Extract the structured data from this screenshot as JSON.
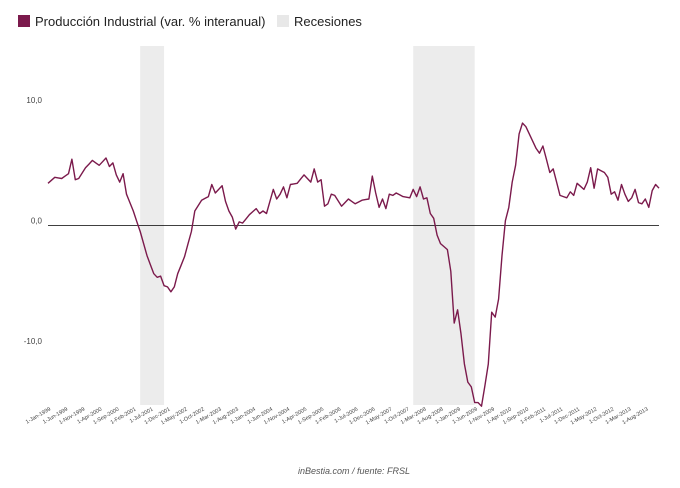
{
  "chart_data": {
    "type": "line",
    "title": "",
    "xlabel": "",
    "ylabel": "",
    "legend": {
      "placement": "top-left",
      "series_label": "Producción Industrial (var. % interanual)",
      "recession_label": "Recesiones"
    },
    "colors": {
      "series": "#7b1a4c",
      "recession": "#ececec",
      "zero_line": "#000000"
    },
    "ylim": [
      -14.9,
      14.9
    ],
    "y_ticks": [
      "10,0",
      "0,0",
      "-10,0"
    ],
    "y_tick_values": [
      10,
      0,
      -10
    ],
    "x_start": "1999-01",
    "x_end": "2013-12",
    "x_ticks": [
      "1-Jan-1999",
      "1-Jun-1999",
      "1-Nov-1999",
      "1-Apr-2000",
      "1-Sep-2000",
      "1-Feb-2001",
      "1-Jul-2001",
      "1-Dec-2001",
      "1-May-2002",
      "1-Oct-2002",
      "1-Mar-2003",
      "1-Aug-2003",
      "1-Jan-2004",
      "1-Jun-2004",
      "1-Nov-2004",
      "1-Apr-2005",
      "1-Sep-2005",
      "1-Feb-2006",
      "1-Jul-2006",
      "1-Dec-2006",
      "1-May-2007",
      "1-Oct-2007",
      "1-Mar-2008",
      "1-Aug-2008",
      "1-Jan-2009",
      "1-Jun-2009",
      "1-Nov-2009",
      "1-Apr-2010",
      "1-Sep-2010",
      "1-Feb-2011",
      "1-Jul-2011",
      "1-Dec-2011",
      "1-May-2012",
      "1-Oct-2012",
      "1-Mar-2013",
      "1-Aug-2013"
    ],
    "recessions": [
      {
        "start": "2001-04",
        "end": "2001-11"
      },
      {
        "start": "2007-12",
        "end": "2009-06"
      }
    ],
    "series": [
      {
        "name": "Producción Industrial (var. % interanual)",
        "anchors": [
          [
            "1999-01",
            3.5
          ],
          [
            "1999-03",
            4.0
          ],
          [
            "1999-05",
            3.9
          ],
          [
            "1999-07",
            4.3
          ],
          [
            "1999-08",
            5.5
          ],
          [
            "1999-09",
            3.8
          ],
          [
            "1999-10",
            3.9
          ],
          [
            "1999-12",
            4.8
          ],
          [
            "2000-02",
            5.4
          ],
          [
            "2000-04",
            5.0
          ],
          [
            "2000-06",
            5.6
          ],
          [
            "2000-07",
            4.9
          ],
          [
            "2000-08",
            5.2
          ],
          [
            "2000-09",
            4.2
          ],
          [
            "2000-10",
            3.6
          ],
          [
            "2000-11",
            4.3
          ],
          [
            "2000-12",
            2.6
          ],
          [
            "2001-02",
            1.2
          ],
          [
            "2001-04",
            -0.5
          ],
          [
            "2001-06",
            -2.5
          ],
          [
            "2001-08",
            -4.0
          ],
          [
            "2001-09",
            -4.3
          ],
          [
            "2001-10",
            -4.2
          ],
          [
            "2001-11",
            -5.0
          ],
          [
            "2001-12",
            -5.1
          ],
          [
            "2002-01",
            -5.5
          ],
          [
            "2002-02",
            -5.1
          ],
          [
            "2002-03",
            -4.0
          ],
          [
            "2002-05",
            -2.6
          ],
          [
            "2002-07",
            -0.5
          ],
          [
            "2002-08",
            1.2
          ],
          [
            "2002-10",
            2.1
          ],
          [
            "2002-12",
            2.4
          ],
          [
            "2003-01",
            3.4
          ],
          [
            "2003-02",
            2.7
          ],
          [
            "2003-04",
            3.3
          ],
          [
            "2003-05",
            2.0
          ],
          [
            "2003-06",
            1.2
          ],
          [
            "2003-07",
            0.7
          ],
          [
            "2003-08",
            -0.3
          ],
          [
            "2003-09",
            0.3
          ],
          [
            "2003-10",
            0.2
          ],
          [
            "2003-12",
            0.9
          ],
          [
            "2004-02",
            1.4
          ],
          [
            "2004-03",
            1.0
          ],
          [
            "2004-04",
            1.2
          ],
          [
            "2004-05",
            1.0
          ],
          [
            "2004-06",
            2.0
          ],
          [
            "2004-07",
            3.0
          ],
          [
            "2004-08",
            2.2
          ],
          [
            "2004-09",
            2.6
          ],
          [
            "2004-10",
            3.2
          ],
          [
            "2004-11",
            2.3
          ],
          [
            "2004-12",
            3.4
          ],
          [
            "2005-02",
            3.5
          ],
          [
            "2005-04",
            4.2
          ],
          [
            "2005-06",
            3.6
          ],
          [
            "2005-07",
            4.7
          ],
          [
            "2005-08",
            3.6
          ],
          [
            "2005-09",
            3.8
          ],
          [
            "2005-10",
            1.6
          ],
          [
            "2005-11",
            1.8
          ],
          [
            "2005-12",
            2.6
          ],
          [
            "2006-01",
            2.5
          ],
          [
            "2006-03",
            1.6
          ],
          [
            "2006-05",
            2.2
          ],
          [
            "2006-07",
            1.8
          ],
          [
            "2006-09",
            2.1
          ],
          [
            "2006-11",
            2.2
          ],
          [
            "2006-12",
            4.1
          ],
          [
            "2007-01",
            2.7
          ],
          [
            "2007-02",
            1.5
          ],
          [
            "2007-03",
            2.2
          ],
          [
            "2007-04",
            1.4
          ],
          [
            "2007-05",
            2.6
          ],
          [
            "2007-06",
            2.5
          ],
          [
            "2007-07",
            2.7
          ],
          [
            "2007-09",
            2.4
          ],
          [
            "2007-11",
            2.3
          ],
          [
            "2007-12",
            3.0
          ],
          [
            "2008-01",
            2.4
          ],
          [
            "2008-02",
            3.2
          ],
          [
            "2008-03",
            2.2
          ],
          [
            "2008-04",
            2.3
          ],
          [
            "2008-05",
            1.0
          ],
          [
            "2008-06",
            0.6
          ],
          [
            "2008-07",
            -0.8
          ],
          [
            "2008-08",
            -1.5
          ],
          [
            "2008-10",
            -2.0
          ],
          [
            "2008-11",
            -3.8
          ],
          [
            "2008-12",
            -8.1
          ],
          [
            "2009-01",
            -7.0
          ],
          [
            "2009-02",
            -9.0
          ],
          [
            "2009-03",
            -11.5
          ],
          [
            "2009-04",
            -13.0
          ],
          [
            "2009-05",
            -13.4
          ],
          [
            "2009-06",
            -14.7
          ],
          [
            "2009-07",
            -14.7
          ],
          [
            "2009-08",
            -15.0
          ],
          [
            "2009-09",
            -13.3
          ],
          [
            "2009-10",
            -11.5
          ],
          [
            "2009-11",
            -7.2
          ],
          [
            "2009-12",
            -7.6
          ],
          [
            "2010-01",
            -6.1
          ],
          [
            "2010-02",
            -2.5
          ],
          [
            "2010-03",
            0.4
          ],
          [
            "2010-04",
            1.5
          ],
          [
            "2010-05",
            3.6
          ],
          [
            "2010-06",
            5.0
          ],
          [
            "2010-07",
            7.6
          ],
          [
            "2010-08",
            8.5
          ],
          [
            "2010-09",
            8.2
          ],
          [
            "2010-10",
            7.6
          ],
          [
            "2010-11",
            7.0
          ],
          [
            "2010-12",
            6.4
          ],
          [
            "2011-01",
            6.0
          ],
          [
            "2011-02",
            6.6
          ],
          [
            "2011-03",
            5.5
          ],
          [
            "2011-04",
            4.4
          ],
          [
            "2011-05",
            4.7
          ],
          [
            "2011-06",
            3.6
          ],
          [
            "2011-07",
            2.5
          ],
          [
            "2011-09",
            2.3
          ],
          [
            "2011-10",
            2.8
          ],
          [
            "2011-11",
            2.5
          ],
          [
            "2011-12",
            3.5
          ],
          [
            "2012-02",
            3.0
          ],
          [
            "2012-03",
            3.6
          ],
          [
            "2012-04",
            4.8
          ],
          [
            "2012-05",
            3.1
          ],
          [
            "2012-06",
            4.7
          ],
          [
            "2012-08",
            4.4
          ],
          [
            "2012-09",
            4.0
          ],
          [
            "2012-10",
            2.6
          ],
          [
            "2012-11",
            2.8
          ],
          [
            "2012-12",
            2.1
          ],
          [
            "2013-01",
            3.4
          ],
          [
            "2013-02",
            2.6
          ],
          [
            "2013-03",
            2.0
          ],
          [
            "2013-04",
            2.3
          ],
          [
            "2013-05",
            3.0
          ],
          [
            "2013-06",
            1.9
          ],
          [
            "2013-07",
            1.8
          ],
          [
            "2013-08",
            2.2
          ],
          [
            "2013-09",
            1.5
          ],
          [
            "2013-10",
            2.9
          ],
          [
            "2013-11",
            3.4
          ],
          [
            "2013-12",
            3.1
          ]
        ]
      }
    ]
  },
  "source_note": "inBestia.com / fuente: FRSL"
}
